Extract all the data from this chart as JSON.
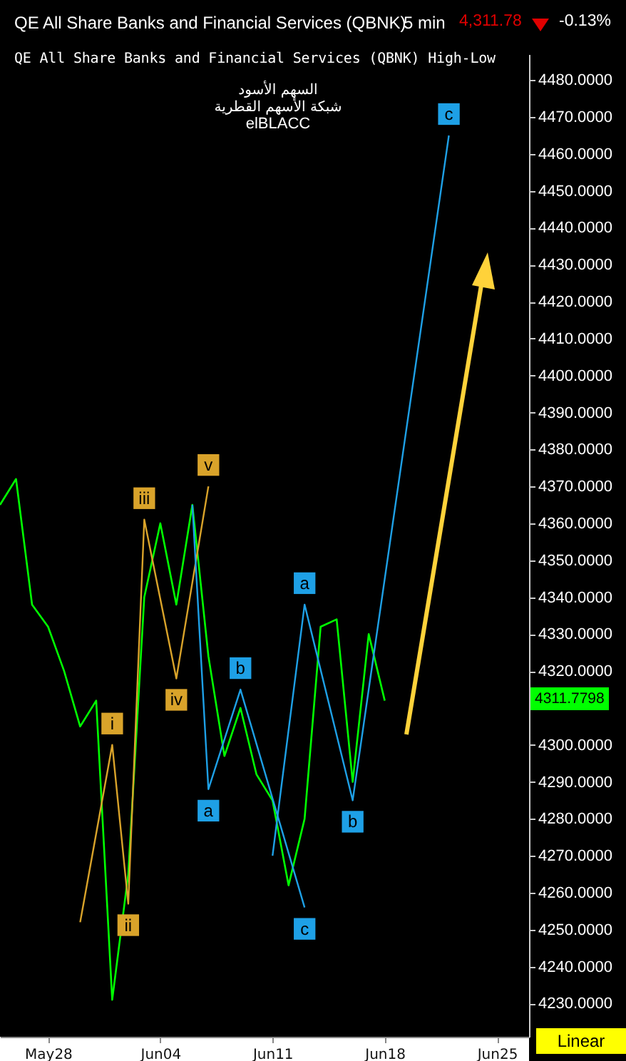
{
  "chart_data": {
    "type": "line",
    "title": "QE All Share Banks and Financial Services (QBNK)",
    "subtitle": "QE All Share Banks and Financial Services (QBNK) High-Low",
    "annotations": [
      "5 min",
      "4,311.78",
      "-0.13%",
      "السهم الأسود",
      "شبكة الأسهم القطرية",
      "elBLACC",
      "Linear",
      "4311.7798",
      {
        "text": "i",
        "x": "--06-01",
        "y": 4300
      },
      {
        "text": "ii",
        "x": "--06-02",
        "y": 4257
      },
      {
        "text": "iii",
        "x": "--06-03",
        "y": 4361
      },
      {
        "text": "iv",
        "x": "--06-05",
        "y": 4318
      },
      {
        "text": "v",
        "x": "--06-07",
        "y": 4370
      },
      {
        "text": "a",
        "x": "--06-07",
        "y": 4288
      },
      {
        "text": "b",
        "x": "--06-09",
        "y": 4315
      },
      {
        "text": "c",
        "x": "--06-13",
        "y": 4256
      },
      {
        "text": "a",
        "x": "--06-13",
        "y": 4338
      },
      {
        "text": "b",
        "x": "--06-16",
        "y": 4285
      },
      {
        "text": "c",
        "x": "--06-22",
        "y": 4465
      }
    ],
    "series": [
      {
        "color": "#00ff00",
        "x": [
          "--05-25",
          "--05-26",
          "--05-27",
          "--05-28",
          "--05-29",
          "--05-30",
          "--05-31",
          "--06-01",
          "--06-02",
          "--06-03",
          "--06-04",
          "--06-05",
          "--06-06",
          "--06-07",
          "--06-08",
          "--06-09",
          "--06-10",
          "--06-11",
          "--06-12",
          "--06-13",
          "--06-14",
          "--06-15",
          "--06-16",
          "--06-17",
          "--06-18"
        ],
        "values": [
          4365,
          4372,
          4338,
          4332,
          4320,
          4305,
          4312,
          4231,
          4265,
          4340,
          4360,
          4338,
          4365,
          4324,
          4297,
          4310,
          4292,
          4285,
          4262,
          4280,
          4332,
          4334,
          4290,
          4330,
          4312
        ]
      },
      {
        "color": "#d9a32a",
        "x": [
          "--05-30",
          "--06-01",
          "--06-02",
          "--06-03",
          "--06-05",
          "--06-07"
        ],
        "values": [
          4252,
          4300,
          4257,
          4361,
          4318,
          4370
        ]
      },
      {
        "color": "#1ea0e6",
        "x": [
          "--06-06",
          "--06-07",
          "--06-09",
          "--06-13"
        ],
        "values": [
          4365,
          4288,
          4315,
          4256
        ]
      },
      {
        "color": "#1ea0e6",
        "x": [
          "--06-11",
          "--06-13",
          "--06-16",
          "--06-22"
        ],
        "values": [
          4270,
          4338,
          4285,
          4465
        ]
      }
    ],
    "xlim": [
      "--05-25",
      "--06-27"
    ],
    "xticks": [
      {
        "value": "--05-28",
        "label": "May28"
      },
      {
        "value": "--06-04",
        "label": "Jun04"
      },
      {
        "value": "--06-11",
        "label": "Jun11"
      },
      {
        "value": "--06-18",
        "label": "Jun18"
      },
      {
        "value": "--06-25",
        "label": "Jun25"
      }
    ],
    "ylim": [
      4221,
      4487
    ],
    "yticks": [
      {
        "value": 4230,
        "label": "4230.0000"
      },
      {
        "value": 4240,
        "label": "4240.0000"
      },
      {
        "value": 4250,
        "label": "4250.0000"
      },
      {
        "value": 4260,
        "label": "4260.0000"
      },
      {
        "value": 4270,
        "label": "4270.0000"
      },
      {
        "value": 4280,
        "label": "4280.0000"
      },
      {
        "value": 4290,
        "label": "4290.0000"
      },
      {
        "value": 4300,
        "label": "4300.0000"
      },
      {
        "value": 4310,
        "label": null
      },
      {
        "value": 4320,
        "label": "4320.0000"
      },
      {
        "value": 4330,
        "label": "4330.0000"
      },
      {
        "value": 4340,
        "label": "4340.0000"
      },
      {
        "value": 4350,
        "label": "4350.0000"
      },
      {
        "value": 4360,
        "label": "4360.0000"
      },
      {
        "value": 4370,
        "label": "4370.0000"
      },
      {
        "value": 4380,
        "label": "4380.0000"
      },
      {
        "value": 4390,
        "label": "4390.0000"
      },
      {
        "value": 4400,
        "label": "4400.0000"
      },
      {
        "value": 4410,
        "label": "4410.0000"
      },
      {
        "value": 4420,
        "label": "4420.0000"
      },
      {
        "value": 4430,
        "label": "4430.0000"
      },
      {
        "value": 4440,
        "label": "4440.0000"
      },
      {
        "value": 4450,
        "label": "4450.0000"
      },
      {
        "value": 4460,
        "label": "4460.0000"
      },
      {
        "value": 4470,
        "label": "4470.0000"
      },
      {
        "value": 4480,
        "label": "4480.0000"
      }
    ],
    "marker": "none",
    "line_style": "solid"
  }
}
